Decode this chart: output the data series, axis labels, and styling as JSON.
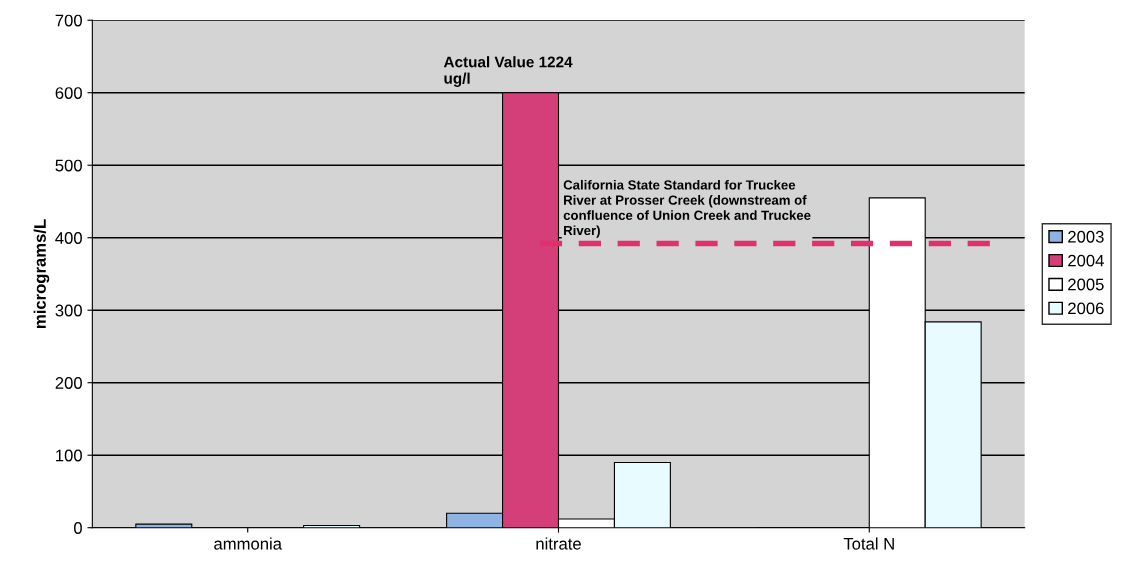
{
  "chart_data": {
    "type": "bar",
    "ylabel": "micrograms/L",
    "categories": [
      "ammonia",
      "nitrate",
      "Total N"
    ],
    "series": [
      {
        "name": "2003",
        "color": "#8fb4e3",
        "values": [
          5,
          20,
          0
        ]
      },
      {
        "name": "2004",
        "color": "#d43f7a",
        "values": [
          null,
          600,
          0
        ]
      },
      {
        "name": "2005",
        "color": "#ffffff",
        "values": [
          null,
          12,
          455
        ]
      },
      {
        "name": "2006",
        "color": "#e8fbff",
        "values": [
          3,
          90,
          284
        ]
      }
    ],
    "ylim": [
      0,
      700
    ],
    "yticks": [
      0,
      100,
      200,
      300,
      400,
      500,
      600,
      700
    ],
    "grid": "y",
    "legend": "right",
    "ref_lines": [
      {
        "axis": "y",
        "value": 392,
        "color": "#e0306e",
        "line_style": "dashed",
        "label": "California State Standard for Truckee\nRiver at Prosser Creek (downstream of\nconfluence of Union Creek and Truckee\nRiver)"
      }
    ],
    "annotations": [
      {
        "text": "Actual Value 1224\nug/l",
        "x": "nitrate",
        "y": 600
      }
    ]
  }
}
